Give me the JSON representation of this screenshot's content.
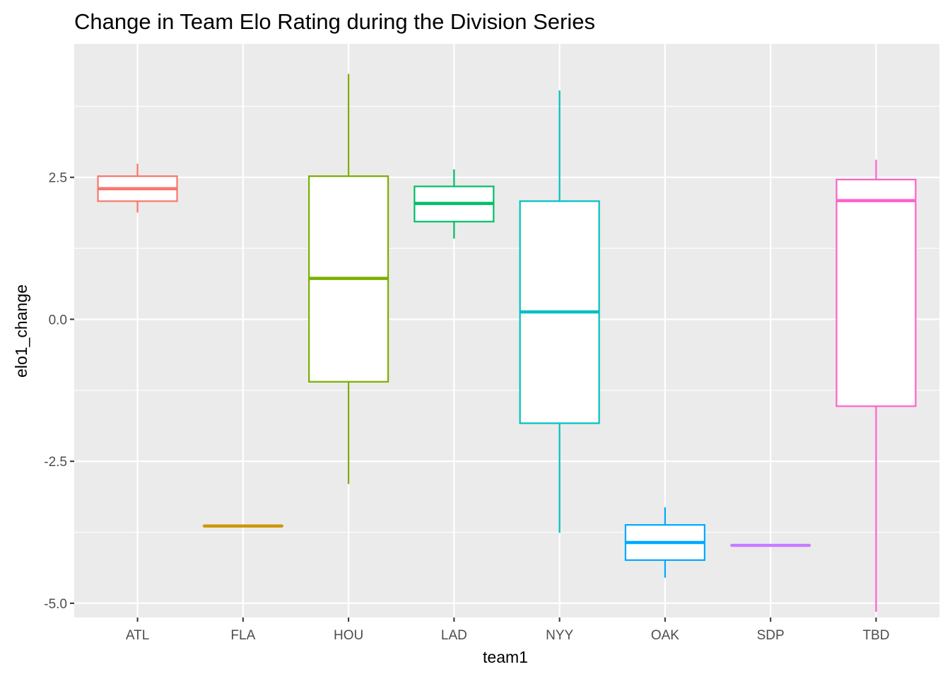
{
  "chart_data": {
    "type": "boxplot",
    "title": "Change in Team Elo Rating during the Division Series",
    "xlabel": "team1",
    "ylabel": "elo1_change",
    "ylim": [
      -5.25,
      4.85
    ],
    "y_ticks": [
      -5.0,
      -2.5,
      0.0,
      2.5
    ],
    "y_tick_labels": [
      "-5.0",
      "-2.5",
      "0.0",
      "2.5"
    ],
    "y_minor_ticks": [
      -3.75,
      -1.25,
      1.25,
      3.75
    ],
    "grid": true,
    "legend": "none",
    "categories": [
      "ATL",
      "FLA",
      "HOU",
      "LAD",
      "NYY",
      "OAK",
      "SDP",
      "TBD"
    ],
    "boxes": [
      {
        "team": "ATL",
        "lower_whisker": 1.88,
        "q1": 2.08,
        "median": 2.3,
        "q3": 2.52,
        "upper_whisker": 2.74,
        "color": "#F8766D"
      },
      {
        "team": "FLA",
        "lower_whisker": -3.64,
        "q1": -3.64,
        "median": -3.64,
        "q3": -3.64,
        "upper_whisker": -3.64,
        "color": "#CD9600"
      },
      {
        "team": "HOU",
        "lower_whisker": -2.9,
        "q1": -1.1,
        "median": 0.72,
        "q3": 2.52,
        "upper_whisker": 4.32,
        "color": "#7CAE00"
      },
      {
        "team": "LAD",
        "lower_whisker": 1.42,
        "q1": 1.72,
        "median": 2.04,
        "q3": 2.34,
        "upper_whisker": 2.64,
        "color": "#00BE67"
      },
      {
        "team": "NYY",
        "lower_whisker": -3.76,
        "q1": -1.83,
        "median": 0.13,
        "q3": 2.08,
        "upper_whisker": 4.03,
        "color": "#00BFC4"
      },
      {
        "team": "OAK",
        "lower_whisker": -4.55,
        "q1": -4.24,
        "median": -3.93,
        "q3": -3.62,
        "upper_whisker": -3.31,
        "color": "#00A9FF"
      },
      {
        "team": "SDP",
        "lower_whisker": -3.98,
        "q1": -3.98,
        "median": -3.98,
        "q3": -3.98,
        "upper_whisker": -3.98,
        "color": "#C77CFF"
      },
      {
        "team": "TBD",
        "lower_whisker": -5.15,
        "q1": -1.53,
        "median": 2.09,
        "q3": 2.46,
        "upper_whisker": 2.81,
        "color": "#FF61CC"
      }
    ]
  }
}
